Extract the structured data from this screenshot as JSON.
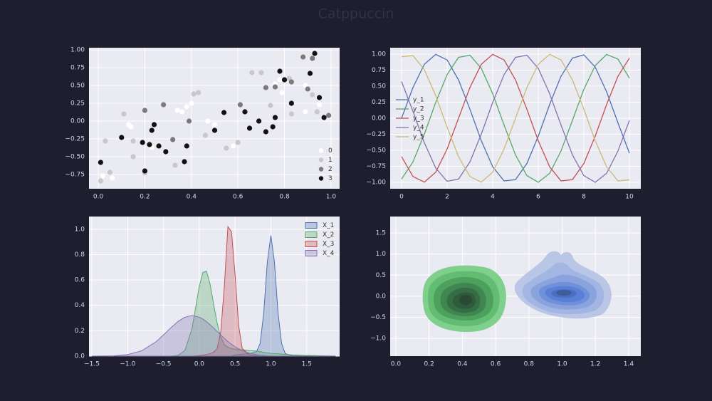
{
  "title": "Catppuccin",
  "chart_data": [
    {
      "type": "scatter",
      "xlim": [
        -0.04,
        1.037
      ],
      "ylim": [
        -0.95,
        1.03
      ],
      "grid": true,
      "legend": "lower right",
      "xticks": [
        {
          "value": 0,
          "label": "0.0"
        },
        0.2,
        0.4,
        0.6,
        0.8,
        {
          "value": 1,
          "label": "1.0"
        }
      ],
      "yticks": [
        {
          "value": -0.75,
          "label": "−0.75"
        },
        {
          "value": -0.5,
          "label": "−0.50"
        },
        {
          "value": -0.25,
          "label": "−0.25"
        },
        {
          "value": 0,
          "label": "0.00"
        },
        {
          "value": 0.25,
          "label": "0.25"
        },
        {
          "value": 0.5,
          "label": "0.50"
        },
        {
          "value": 0.75,
          "label": "0.75"
        },
        {
          "value": 1,
          "label": "1.00"
        }
      ],
      "series": [
        {
          "name": "0",
          "color": "#ffffff",
          "x": [
            0.02,
            0.06,
            0.13,
            0.14,
            0.23,
            0.34,
            0.36,
            0.38,
            0.4,
            0.47,
            0.5,
            0.58,
            0.76,
            0.79,
            0.89,
            0.89,
            0.95,
            0.78
          ],
          "values": [
            -0.77,
            -0.8,
            -0.05,
            -0.08,
            -0.37,
            0.15,
            0.13,
            0.2,
            0.25,
            0.0,
            -0.05,
            -0.35,
            0.52,
            0.4,
            0.5,
            0.13,
            0.23,
            0.58
          ]
        },
        {
          "name": "1",
          "color": "#c8c8c8",
          "x": [
            0.01,
            0.03,
            0.05,
            0.11,
            0.15,
            0.15,
            0.33,
            0.41,
            0.43,
            0.46,
            0.55,
            0.6,
            0.66,
            0.7,
            0.74,
            0.82,
            0.83,
            0.92,
            0.94,
            0.2
          ],
          "values": [
            -0.84,
            -0.28,
            -0.72,
            0.1,
            -0.28,
            -0.5,
            -0.62,
            0.38,
            0.4,
            -0.2,
            -0.38,
            -0.3,
            0.68,
            0.68,
            0.22,
            0.6,
            0.1,
            0.37,
            0.13,
            -0.73
          ]
        },
        {
          "name": "2",
          "color": "#7a7a7a",
          "x": [
            0.28,
            0.32,
            0.39,
            0.61,
            0.72,
            0.76,
            0.88,
            0.9,
            0.92,
            0.99,
            0.2,
            0.83
          ],
          "values": [
            0.23,
            -0.26,
            0.0,
            0.23,
            0.47,
            0.48,
            0.9,
            0.45,
            0.88,
            0.08,
            0.15,
            0.55
          ]
        },
        {
          "name": "3",
          "color": "#111111",
          "x": [
            0.01,
            0.1,
            0.19,
            0.2,
            0.22,
            0.23,
            0.24,
            0.26,
            0.29,
            0.37,
            0.38,
            0.5,
            0.54,
            0.63,
            0.65,
            0.69,
            0.72,
            0.75,
            0.76,
            0.78,
            0.8,
            0.83,
            0.91,
            0.93,
            0.95,
            0.97
          ],
          "values": [
            -0.58,
            -0.23,
            -0.3,
            -0.7,
            -0.33,
            -0.13,
            -0.05,
            -0.35,
            -0.43,
            -0.57,
            -0.35,
            -0.13,
            0.12,
            0.13,
            -0.1,
            0.0,
            -0.15,
            -0.08,
            0.05,
            0.7,
            0.58,
            0.25,
            0.67,
            0.95,
            0.33,
            0.05
          ]
        }
      ]
    },
    {
      "type": "line",
      "xlim": [
        -0.5,
        10.5
      ],
      "ylim": [
        -1.1,
        1.1
      ],
      "grid": true,
      "legend": "center left",
      "xticks": [
        0,
        2,
        4,
        6,
        8,
        10
      ],
      "yticks": [
        {
          "value": -1,
          "label": "−1.00"
        },
        {
          "value": -0.75,
          "label": "−0.75"
        },
        {
          "value": -0.5,
          "label": "−0.50"
        },
        {
          "value": -0.25,
          "label": "−0.25"
        },
        {
          "value": 0,
          "label": "0.00"
        },
        {
          "value": 0.25,
          "label": "0.25"
        },
        {
          "value": 0.5,
          "label": "0.50"
        },
        {
          "value": 0.75,
          "label": "0.75"
        },
        {
          "value": 1,
          "label": "1.00"
        }
      ],
      "x": [
        0,
        0.5,
        1,
        1.5,
        2,
        2.5,
        3,
        3.5,
        4,
        4.5,
        5,
        5.5,
        6,
        6.5,
        7,
        7.5,
        8,
        8.5,
        9,
        9.5,
        10
      ],
      "series": [
        {
          "name": "y_1",
          "color": "#4c72b0",
          "values": [
            0,
            0.479,
            0.841,
            0.997,
            0.909,
            0.598,
            0.141,
            -0.351,
            -0.757,
            -0.978,
            -0.959,
            -0.706,
            -0.279,
            0.215,
            0.657,
            0.938,
            0.989,
            0.798,
            0.412,
            -0.075,
            -0.544
          ]
        },
        {
          "name": "y_2",
          "color": "#55a868",
          "values": [
            -0.949,
            -0.682,
            -0.247,
            0.247,
            0.682,
            0.949,
            0.984,
            0.778,
            0.382,
            -0.108,
            -0.572,
            -0.895,
            -0.999,
            -0.859,
            -0.51,
            -0.033,
            0.451,
            0.822,
            0.995,
            0.922,
            0.625
          ]
        },
        {
          "name": "y_3",
          "color": "#c44e52",
          "values": [
            -0.598,
            -0.909,
            -0.997,
            -0.841,
            -0.479,
            0,
            0.479,
            0.841,
            0.997,
            0.909,
            0.598,
            0.141,
            -0.351,
            -0.757,
            -0.978,
            -0.959,
            -0.706,
            -0.279,
            0.215,
            0.657,
            0.938
          ]
        },
        {
          "name": "y_4",
          "color": "#8172b2",
          "values": [
            0.572,
            0.108,
            -0.382,
            -0.778,
            -0.984,
            -0.949,
            -0.682,
            -0.247,
            0.247,
            0.682,
            0.949,
            0.984,
            0.778,
            0.382,
            -0.108,
            -0.572,
            -0.895,
            -0.999,
            -0.859,
            -0.51,
            -0.033
          ]
        },
        {
          "name": "y_5",
          "color": "#ccb974",
          "values": [
            0.959,
            0.978,
            0.757,
            0.351,
            -0.141,
            -0.598,
            -0.909,
            -0.997,
            -0.841,
            -0.479,
            0,
            0.479,
            0.841,
            0.997,
            0.909,
            0.598,
            0.141,
            -0.351,
            -0.757,
            -0.978,
            -0.959
          ]
        }
      ]
    },
    {
      "type": "area",
      "xlim": [
        -1.54,
        1.96
      ],
      "ylim": [
        0,
        1.1
      ],
      "grid": true,
      "legend": "upper right",
      "alpha": 0.3,
      "xticks": [
        {
          "value": -1.5,
          "label": "−1.5"
        },
        {
          "value": -1,
          "label": "−1.0"
        },
        {
          "value": -0.5,
          "label": "−0.5"
        },
        {
          "value": 0,
          "label": "0.0"
        },
        0.5,
        {
          "value": 1,
          "label": "1.0"
        },
        1.5
      ],
      "yticks": [
        {
          "value": 0,
          "label": "0.0"
        },
        0.2,
        0.4,
        0.6,
        0.8,
        {
          "value": 1,
          "label": "1.0"
        }
      ],
      "x": [
        -1.5,
        -1.2,
        -1.0,
        -0.8,
        -0.6,
        -0.5,
        -0.4,
        -0.3,
        -0.2,
        -0.1,
        0,
        0.05,
        0.1,
        0.15,
        0.2,
        0.25,
        0.3,
        0.35,
        0.4,
        0.45,
        0.5,
        0.55,
        0.6,
        0.7,
        0.8,
        0.85,
        0.9,
        0.95,
        1.0,
        1.05,
        1.1,
        1.15,
        1.2,
        1.3,
        1.5,
        1.7,
        1.9
      ],
      "series": [
        {
          "name": "X_1",
          "color": "#4c72b0",
          "values": [
            0,
            0,
            0,
            0,
            0,
            0,
            0,
            0,
            0,
            0,
            0,
            0,
            0,
            0,
            0,
            0,
            0,
            0,
            0,
            0,
            0.01,
            0.012,
            0.015,
            0.02,
            0.035,
            0.1,
            0.34,
            0.74,
            0.95,
            0.74,
            0.34,
            0.1,
            0.02,
            0.003,
            0,
            0,
            0
          ]
        },
        {
          "name": "X_2",
          "color": "#55a868",
          "values": [
            0,
            0,
            0,
            0,
            0,
            0,
            0,
            0.005,
            0.045,
            0.22,
            0.55,
            0.66,
            0.67,
            0.57,
            0.41,
            0.26,
            0.15,
            0.09,
            0.07,
            0.06,
            0.055,
            0.05,
            0.05,
            0.045,
            0.04,
            0.035,
            0.03,
            0.025,
            0.022,
            0.02,
            0.018,
            0.016,
            0.014,
            0.01,
            0.006,
            0.003,
            0.001
          ]
        },
        {
          "name": "X_3",
          "color": "#c44e52",
          "values": [
            0,
            0,
            0,
            0,
            0,
            0,
            0,
            0,
            0,
            0,
            0.005,
            0.008,
            0.012,
            0.02,
            0.03,
            0.06,
            0.19,
            0.55,
            1.02,
            0.98,
            0.64,
            0.24,
            0.06,
            0.01,
            0.005,
            0,
            0,
            0,
            0,
            0,
            0,
            0,
            0,
            0,
            0,
            0,
            0
          ]
        },
        {
          "name": "X_4",
          "color": "#8172b2",
          "values": [
            0,
            0.002,
            0.012,
            0.043,
            0.115,
            0.167,
            0.222,
            0.272,
            0.307,
            0.32,
            0.307,
            0.292,
            0.272,
            0.248,
            0.222,
            0.194,
            0.167,
            0.14,
            0.115,
            0.093,
            0.074,
            0.057,
            0.043,
            0.023,
            0.012,
            0.008,
            0.005,
            0.003,
            0.002,
            0.001,
            0,
            0,
            0,
            0,
            0,
            0,
            0
          ]
        }
      ]
    },
    {
      "type": "contour",
      "xlim": [
        -0.034,
        1.473
      ],
      "ylim": [
        -1.42,
        1.89
      ],
      "grid": true,
      "xticks": [
        {
          "value": 0,
          "label": "0.0"
        },
        0.2,
        0.4,
        0.6,
        0.8,
        {
          "value": 1,
          "label": "1.0"
        },
        1.2,
        1.4
      ],
      "yticks": [
        {
          "value": -1,
          "label": "−1.0"
        },
        {
          "value": -0.5,
          "label": "−0.5"
        },
        {
          "value": 0,
          "label": "0.0"
        },
        0.5,
        {
          "value": 1,
          "label": "1.0"
        },
        1.5
      ]
    }
  ]
}
